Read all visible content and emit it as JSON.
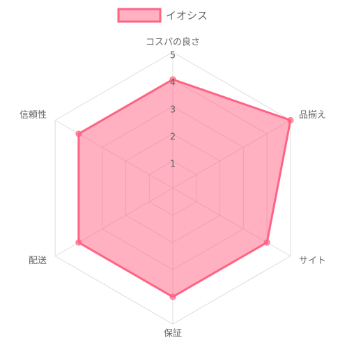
{
  "chart_data": {
    "type": "radar",
    "categories": [
      "コスパの良さ",
      "品揃え",
      "サイト",
      "保証",
      "配送",
      "信頼性"
    ],
    "series": [
      {
        "name": "イオシス",
        "color": "#ff6384",
        "values": [
          4,
          5,
          4,
          4,
          4,
          4
        ]
      }
    ],
    "ylim": [
      0,
      5
    ],
    "yticks": [
      1,
      2,
      3,
      4,
      5
    ],
    "grid": true
  }
}
